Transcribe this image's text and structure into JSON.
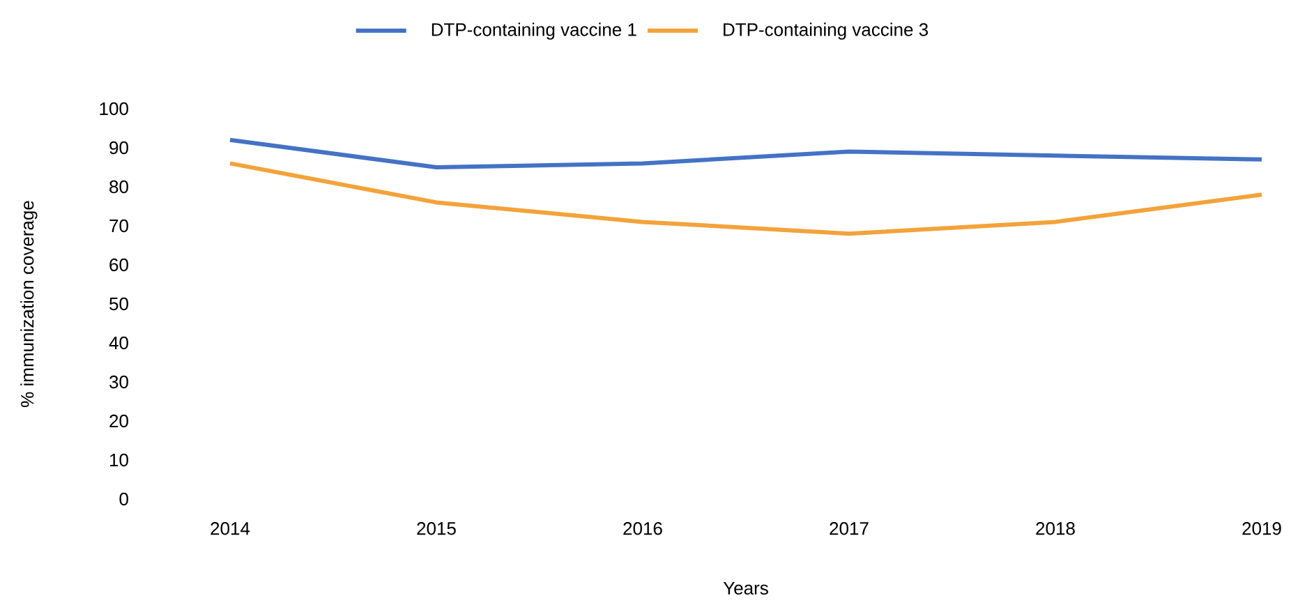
{
  "chart_data": {
    "type": "line",
    "xlabel": "Years",
    "ylabel": "% immunization coverage",
    "categories": [
      "2014",
      "2015",
      "2016",
      "2017",
      "2018",
      "2019"
    ],
    "series": [
      {
        "name": "DTP-containing vaccine 1",
        "color": "#4472c4",
        "values": [
          92,
          85,
          86,
          89,
          88,
          87
        ]
      },
      {
        "name": "DTP-containing vaccine 3",
        "color": "#f2a33a",
        "values": [
          86,
          76,
          71,
          68,
          71,
          78
        ]
      }
    ],
    "ylim": [
      0,
      100
    ],
    "yticks": [
      0,
      10,
      20,
      30,
      40,
      50,
      60,
      70,
      80,
      90,
      100
    ],
    "grid": false,
    "legend": "top",
    "marker": "none",
    "line_style": "solid"
  }
}
